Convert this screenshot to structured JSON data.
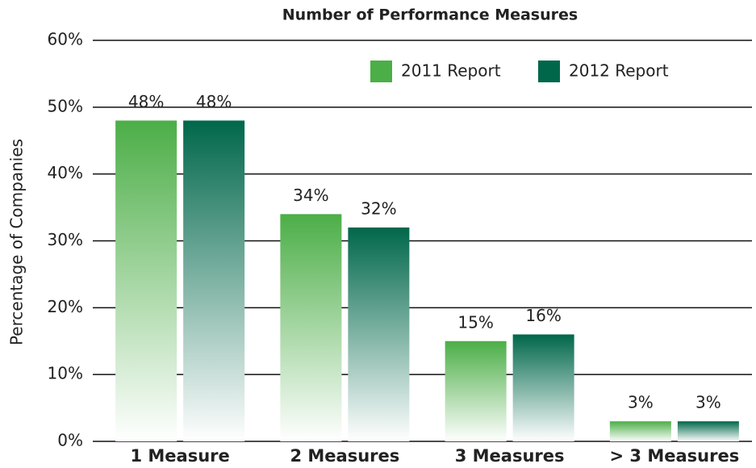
{
  "chart_data": {
    "type": "bar",
    "title": "Number of Performance Measures",
    "y_label": "Percentage of Companies",
    "categories": [
      "1 Measure",
      "2 Measures",
      "3 Measures",
      "> 3 Measures"
    ],
    "series": [
      {
        "name": "2011 Report",
        "color": "#4cae47",
        "values": [
          48,
          34,
          15,
          3
        ],
        "value_labels": [
          "48%",
          "34%",
          "15%",
          "3%"
        ]
      },
      {
        "name": "2012 Report",
        "color": "#00674a",
        "values": [
          48,
          32,
          16,
          3
        ],
        "value_labels": [
          "48%",
          "32%",
          "16%",
          "3%"
        ]
      }
    ],
    "ylim": [
      0,
      60
    ],
    "yticks": [
      {
        "value": 0,
        "label": "0%"
      },
      {
        "value": 10,
        "label": "10%"
      },
      {
        "value": 20,
        "label": "20%"
      },
      {
        "value": 30,
        "label": "30%"
      },
      {
        "value": 40,
        "label": "40%"
      },
      {
        "value": 50,
        "label": "50%"
      },
      {
        "value": 60,
        "label": "60%"
      }
    ],
    "grid": true,
    "legend": "top right"
  }
}
